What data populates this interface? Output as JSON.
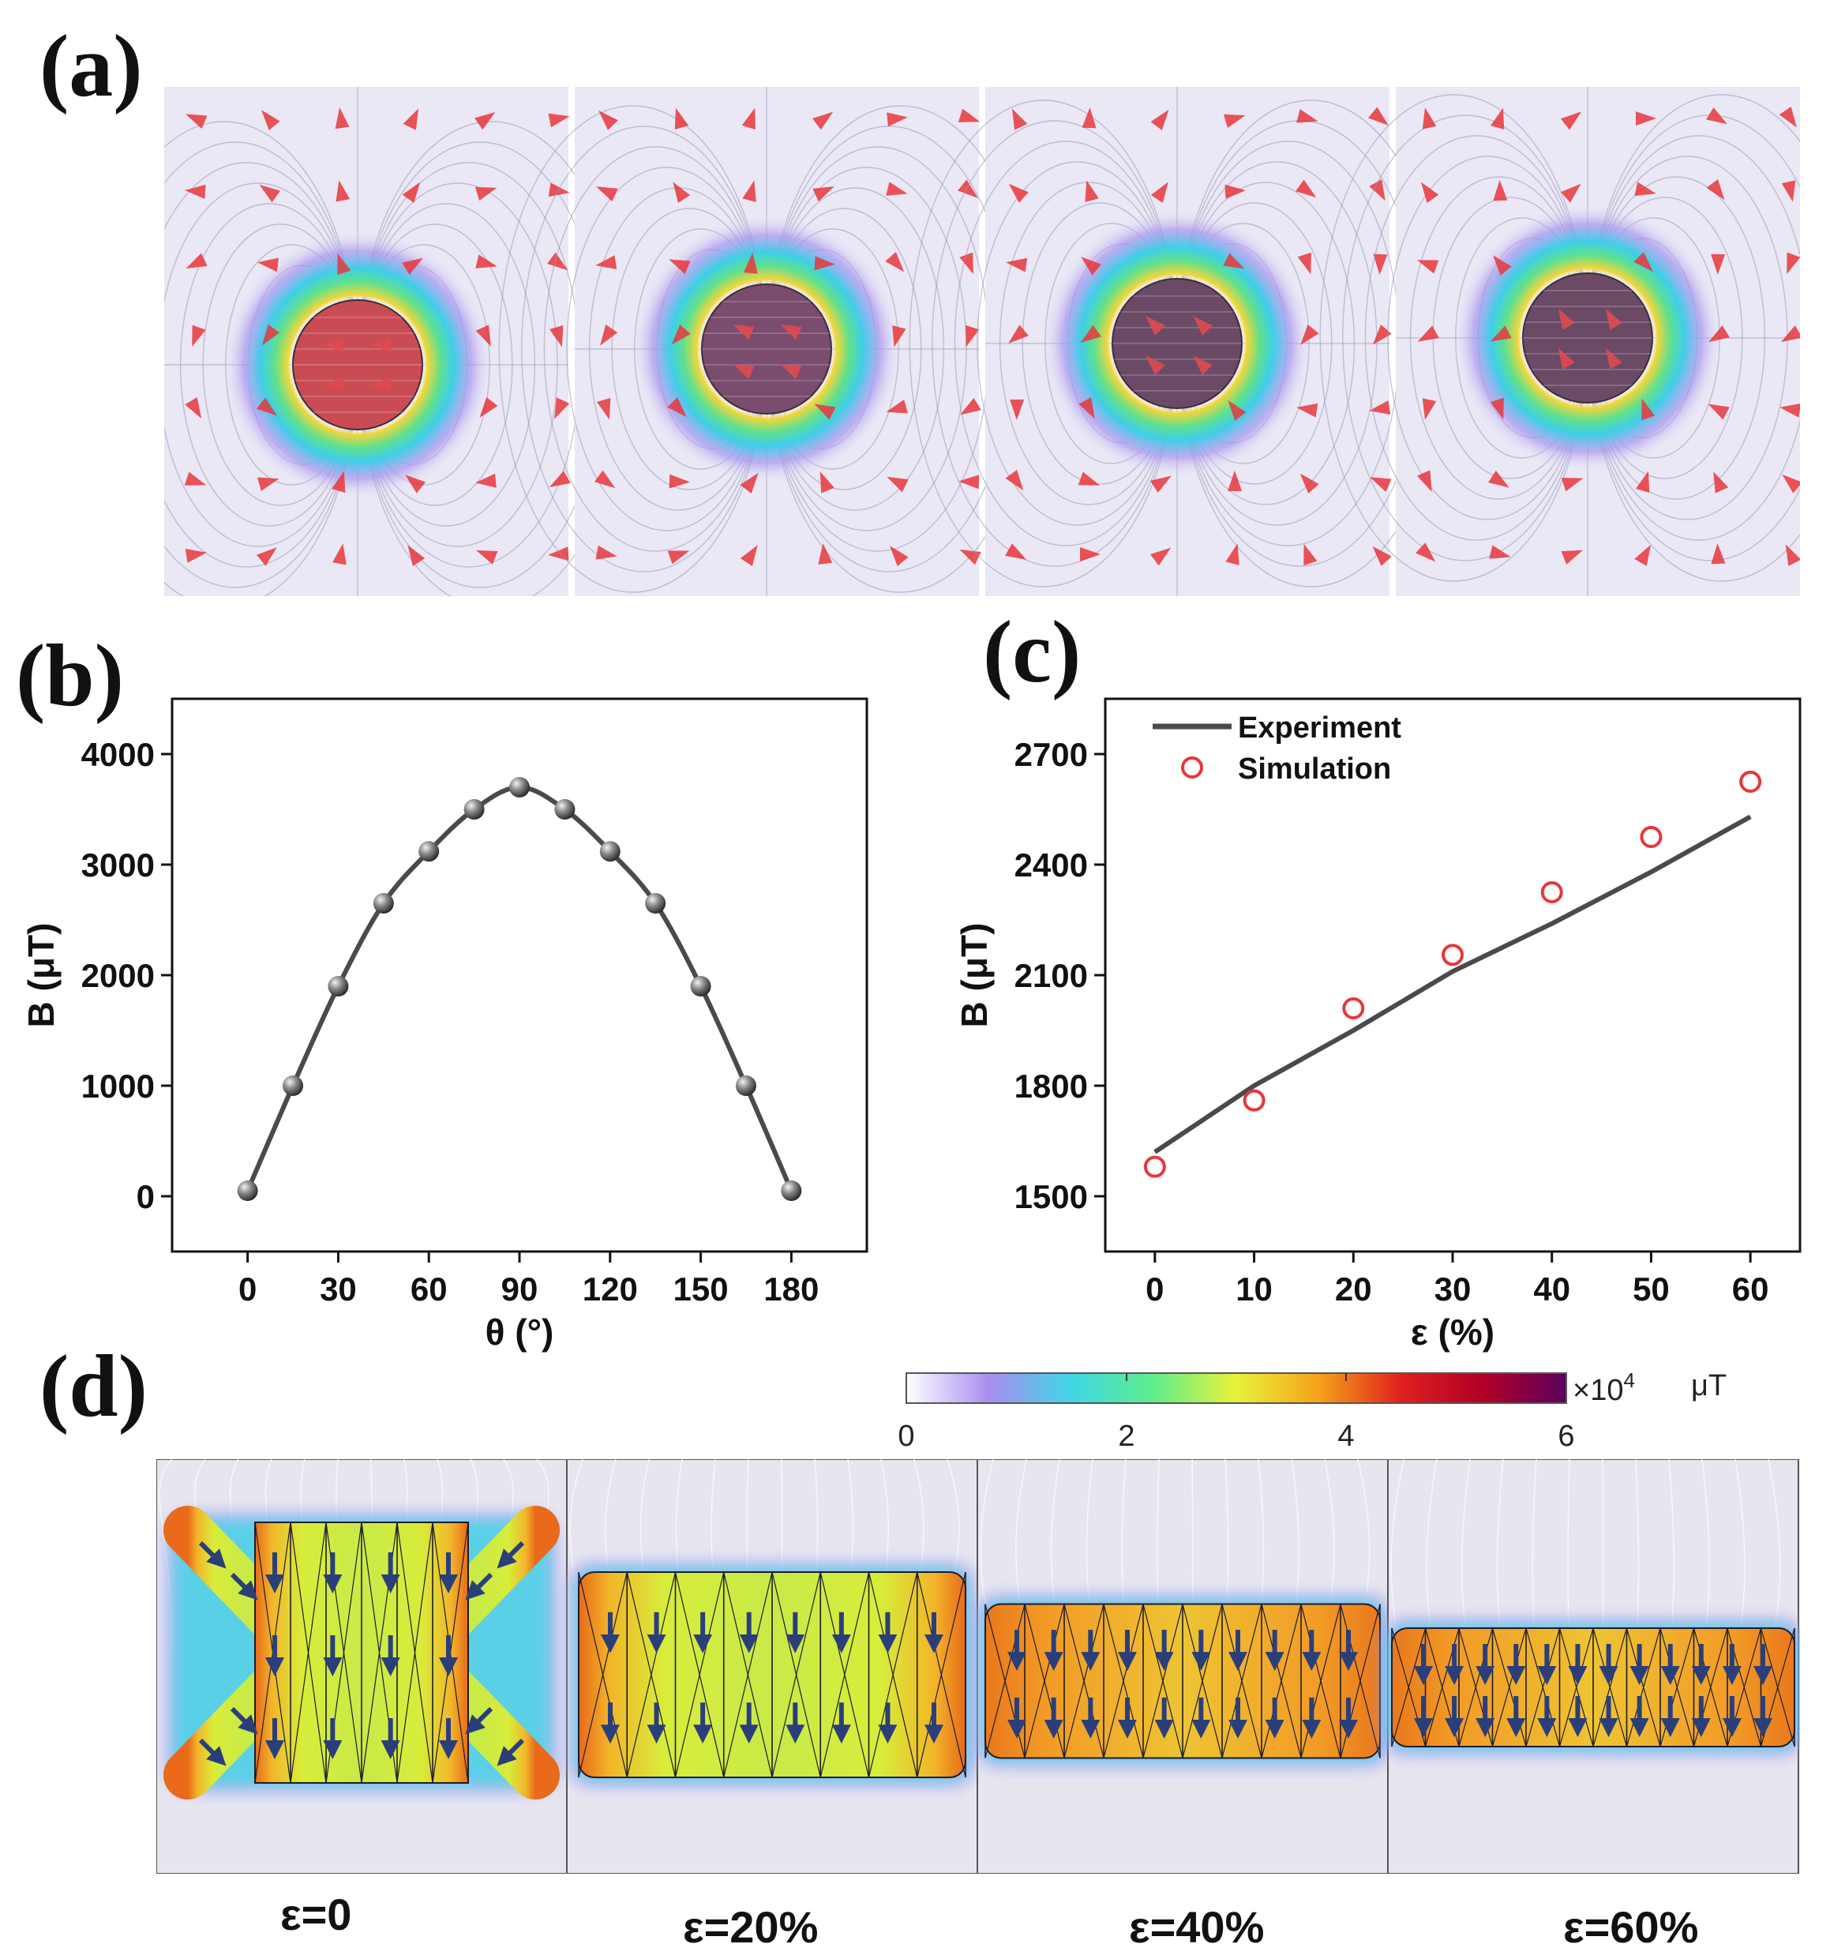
{
  "panels": {
    "a": "(a)",
    "b": "(b)",
    "c": "(c)",
    "d": "(d)"
  },
  "colors": {
    "accent_red": "#e8363b",
    "line_gray": "#4a4a4a",
    "field_bg": "#e9e8f4"
  },
  "chart_data": [
    {
      "id": "b",
      "type": "line",
      "xlabel": "θ (°)",
      "ylabel": "B (μT)",
      "xlim": [
        -25,
        205
      ],
      "ylim": [
        -500,
        4500
      ],
      "xticks": [
        0,
        30,
        60,
        90,
        120,
        150,
        180
      ],
      "yticks": [
        0,
        1000,
        2000,
        3000,
        4000
      ],
      "series": [
        {
          "name": "B",
          "marker": "sphere",
          "x": [
            0,
            15,
            30,
            45,
            60,
            75,
            90,
            105,
            120,
            135,
            150,
            165,
            180
          ],
          "y": [
            50,
            1000,
            1900,
            2650,
            3120,
            3500,
            3700,
            3500,
            3120,
            2650,
            1900,
            1000,
            50
          ]
        }
      ]
    },
    {
      "id": "c",
      "type": "line",
      "xlabel": "ε (%)",
      "ylabel": "B (μT)",
      "xlim": [
        -5,
        65
      ],
      "ylim": [
        1350,
        2850
      ],
      "xticks": [
        0,
        10,
        20,
        30,
        40,
        50,
        60
      ],
      "yticks": [
        1500,
        1800,
        2100,
        2400,
        2700
      ],
      "legend_position": "top-left",
      "series": [
        {
          "name": "Experiment",
          "style": "line",
          "x": [
            0,
            10,
            20,
            30,
            40,
            50,
            60
          ],
          "y": [
            1620,
            1800,
            1950,
            2110,
            2240,
            2380,
            2530
          ]
        },
        {
          "name": "Simulation",
          "style": "open-circle",
          "x": [
            0,
            10,
            20,
            30,
            40,
            50,
            60
          ],
          "y": [
            1580,
            1760,
            2010,
            2155,
            2325,
            2475,
            2625
          ]
        }
      ]
    }
  ],
  "colorbar": {
    "ticks": [
      "0",
      "2",
      "4",
      "6"
    ],
    "multiplier": "×10",
    "exponent": "4",
    "unit": "μT",
    "stops": [
      "#ffffff",
      "#a98ef0",
      "#3fd6e6",
      "#5fee8a",
      "#e9f23a",
      "#f5a21a",
      "#e0201e",
      "#b00025",
      "#5c0060"
    ]
  },
  "panel_d": {
    "strain_labels": [
      "ε=0",
      "ε=20%",
      "ε=40%",
      "ε=60%"
    ]
  }
}
